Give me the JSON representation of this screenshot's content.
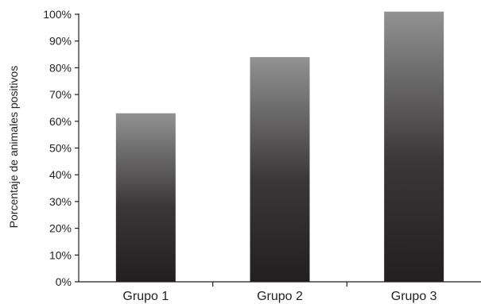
{
  "chart_data": {
    "type": "bar",
    "categories": [
      "Grupo 1",
      "Grupo 2",
      "Grupo 3"
    ],
    "values": [
      63,
      84,
      101
    ],
    "ylabel": "Porcentaje de animales positivos",
    "xlabel": "",
    "ylim": [
      0,
      100
    ],
    "yticks": [
      "0%",
      "10%",
      "20%",
      "30%",
      "40%",
      "50%",
      "60%",
      "70%",
      "80%",
      "90%",
      "100%"
    ],
    "grid": false,
    "bar_gradient": [
      "#929292",
      "#231f20"
    ],
    "axis_color": "#231f20"
  }
}
